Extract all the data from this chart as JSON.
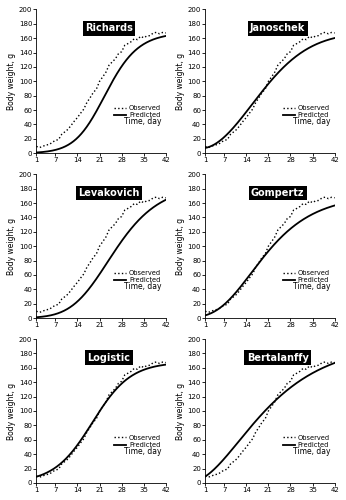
{
  "subplots": [
    {
      "title": "Richards",
      "row": 0,
      "col": 0
    },
    {
      "title": "Janoschek",
      "row": 0,
      "col": 1
    },
    {
      "title": "Levakovich",
      "row": 1,
      "col": 0
    },
    {
      "title": "Gompertz",
      "row": 1,
      "col": 1
    },
    {
      "title": "Logistic",
      "row": 2,
      "col": 0
    },
    {
      "title": "Bertalanffy",
      "row": 2,
      "col": 1
    }
  ],
  "ylabel": "Body weight, g",
  "xlabel": "Time, day",
  "xticks": [
    1,
    7,
    14,
    21,
    28,
    35,
    42
  ],
  "yticks": [
    0,
    20,
    40,
    60,
    80,
    100,
    120,
    140,
    160,
    180,
    200
  ],
  "ylim": [
    0,
    200
  ],
  "xlim": [
    1,
    42
  ],
  "legend_observed": "Observed",
  "legend_predicted": "Predicted",
  "observed_color": "black",
  "predicted_color": "black",
  "title_bg_color": "black",
  "title_text_color": "white",
  "observed_days": [
    1,
    2,
    3,
    4,
    5,
    6,
    7,
    8,
    9,
    10,
    11,
    12,
    13,
    14,
    15,
    16,
    17,
    18,
    19,
    20,
    21,
    22,
    23,
    24,
    25,
    26,
    27,
    28,
    29,
    30,
    31,
    32,
    33,
    34,
    35,
    36,
    37,
    38,
    39,
    40,
    41,
    42
  ],
  "observed_vals": [
    7.5,
    8.5,
    9.5,
    11,
    13,
    15,
    18,
    21,
    25,
    29,
    34,
    39,
    44,
    50,
    56,
    63,
    70,
    77,
    84,
    91,
    98,
    106,
    113,
    120,
    127,
    133,
    139,
    144,
    149,
    153,
    156,
    158,
    160,
    162,
    163,
    164,
    165,
    165.5,
    166,
    166.5,
    167,
    167.5
  ]
}
